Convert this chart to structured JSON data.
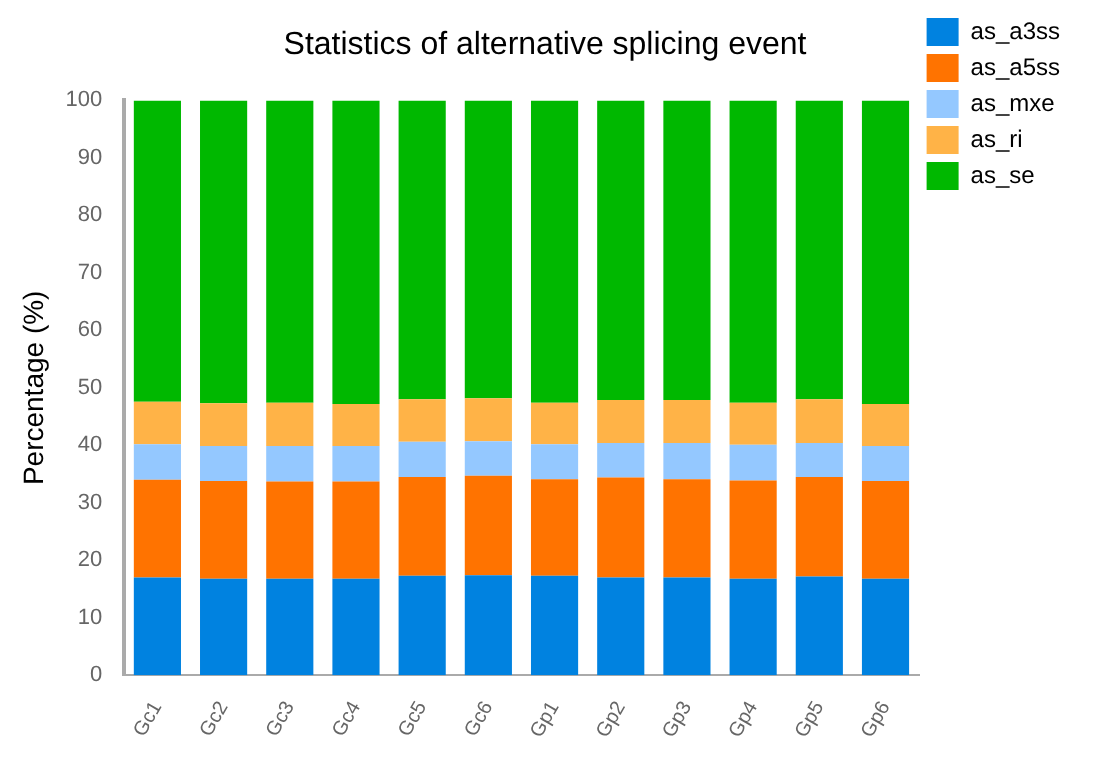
{
  "chart_data": {
    "type": "bar",
    "title": "Statistics of alternative splicing event",
    "ylabel": "Percentage (%)",
    "stacked": true,
    "categories": [
      "Gc1",
      "Gc2",
      "Gc3",
      "Gc4",
      "Gc5",
      "Gc6",
      "Gp1",
      "Gp2",
      "Gp3",
      "Gp4",
      "Gp5",
      "Gp6"
    ],
    "series": [
      {
        "name": "as_a3ss",
        "color": "#0082e0",
        "values": [
          17.0,
          16.8,
          16.8,
          16.8,
          17.3,
          17.4,
          17.3,
          17.0,
          17.0,
          16.8,
          17.2,
          16.8
        ]
      },
      {
        "name": "as_a5ss",
        "color": "#ff7300",
        "values": [
          17.0,
          17.0,
          16.9,
          16.9,
          17.2,
          17.3,
          16.8,
          17.4,
          17.1,
          17.1,
          17.3,
          17.0
        ]
      },
      {
        "name": "as_mxe",
        "color": "#94c8ff",
        "values": [
          6.2,
          6.1,
          6.2,
          6.2,
          6.1,
          6.0,
          6.1,
          6.0,
          6.3,
          6.2,
          5.9,
          6.1
        ]
      },
      {
        "name": "as_ri",
        "color": "#ffb347",
        "values": [
          7.4,
          7.4,
          7.5,
          7.3,
          7.4,
          7.5,
          7.2,
          7.5,
          7.5,
          7.3,
          7.6,
          7.3
        ]
      },
      {
        "name": "as_se",
        "color": "#00b800",
        "values": [
          52.4,
          52.7,
          52.6,
          52.8,
          52.0,
          51.8,
          52.6,
          52.1,
          52.1,
          52.6,
          52.0,
          52.8
        ]
      }
    ],
    "ylim": [
      0,
      100
    ],
    "yticks": [
      0,
      10,
      20,
      30,
      40,
      50,
      60,
      70,
      80,
      90,
      100
    ],
    "grid": false,
    "legend": "top right"
  }
}
